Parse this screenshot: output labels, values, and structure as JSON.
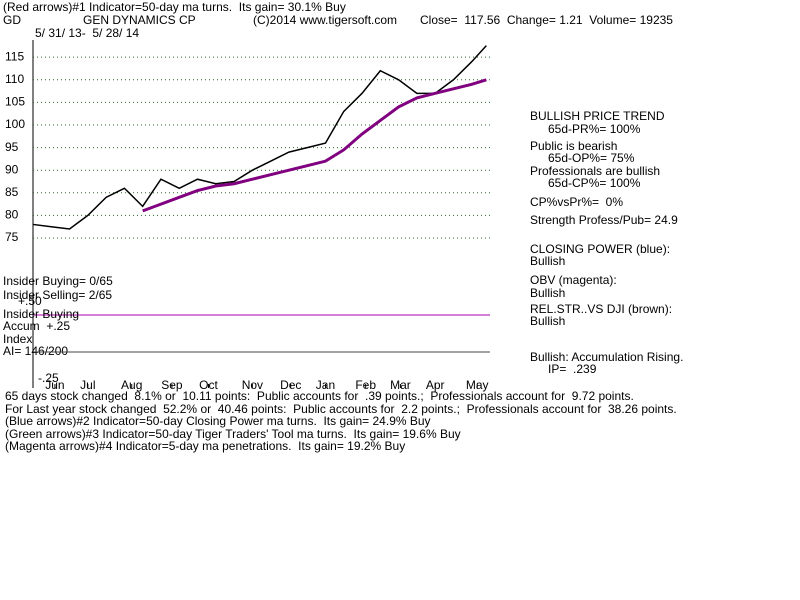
{
  "chart_data": {
    "type": "line",
    "ticker": "GD",
    "title": "GEN DYNAMICS CP",
    "copyright": "(C)2014 www.tigersoft.com",
    "quote": "Close=  117.56  Change= 1.21  Volume= 19235",
    "date_range": "5/ 31/ 13-  5/ 28/ 14",
    "annotations": [
      "(Red arrows)#1 Indicator=50-day ma turns.  Its gain= 30.1% Buy",
      "BULLISH PRICE TREND",
      "65d-PR%= 100%",
      "Public is bearish",
      "65d-OP%= 75%",
      "Professionals are bullish",
      "65d-CP%= 100%",
      "CP%vsPr%=  0%",
      "Strength Profess/Pub= 24.9",
      "CLOSING POWER (blue):",
      "Bullish",
      "OBV (magenta):",
      "Bullish",
      "REL.STR..VS DJI (brown):",
      "Bullish",
      "Bullish: Accumulation Rising.",
      "IP=  .239",
      "Insider Buying= 0/65",
      "Insider Selling= 2/65",
      "+.50",
      "Insider Buying",
      "Accum  +.25",
      "Index",
      "AI= 146/200",
      "-.25",
      "65 days stock changed  8.1% or  10.11 points:  Public accounts for  .39 points.;  Professionals account for  9.72 points.",
      "For Last year stock changed  52.2% or  40.46 points:  Public accounts for  2.2 points.;  Professionals account for  38.26 points.",
      "(Blue arrows)#2 Indicator=50-day Closing Power ma turns.  Its gain= 24.9% Buy",
      "(Green arrows)#3 Indicator=50-day Tiger Traders' Tool ma turns.  Its gain= 19.6% Buy",
      "(Magenta arrows)#4 Indicator=5-day ma penetrations.  Its gain= 19.2% Buy"
    ],
    "x": [
      0,
      10,
      20,
      30,
      40,
      50,
      60,
      70,
      80,
      90,
      100,
      110,
      120,
      130,
      140,
      150,
      160,
      170,
      180,
      190,
      200,
      210,
      220,
      230,
      240,
      248
    ],
    "xlim": [
      0,
      250
    ],
    "xticks": [
      {
        "value": 12,
        "label": "Jun"
      },
      {
        "value": 30,
        "label": "Jul"
      },
      {
        "value": 54,
        "label": "Aug"
      },
      {
        "value": 76,
        "label": "Sep"
      },
      {
        "value": 96,
        "label": "Oct"
      },
      {
        "value": 120,
        "label": "Nov"
      },
      {
        "value": 141,
        "label": "Dec"
      },
      {
        "value": 160,
        "label": "Jan"
      },
      {
        "value": 182,
        "label": "Feb"
      },
      {
        "value": 201,
        "label": "Mar"
      },
      {
        "value": 220,
        "label": "Apr"
      },
      {
        "value": 243,
        "label": "May"
      }
    ],
    "ylim": [
      70,
      118.8
    ],
    "yticks": [
      75,
      80,
      85,
      90,
      95,
      100,
      105,
      110,
      115
    ],
    "grid": true,
    "series": [
      {
        "name": "Close",
        "color": "#000000",
        "values": [
          78,
          77.5,
          77,
          80,
          84,
          86,
          82,
          88,
          86,
          88,
          87,
          87.5,
          90,
          92,
          94,
          95,
          96,
          103,
          107,
          112,
          110,
          107,
          107,
          110,
          114,
          117.56
        ]
      },
      {
        "name": "50-day ma",
        "color": "#800080",
        "values": [
          null,
          null,
          null,
          null,
          null,
          null,
          81,
          82.5,
          84,
          85.5,
          86.5,
          87,
          88,
          89,
          90,
          91,
          92,
          94.5,
          98,
          101,
          104,
          106,
          107,
          108,
          109,
          110
        ]
      }
    ]
  }
}
